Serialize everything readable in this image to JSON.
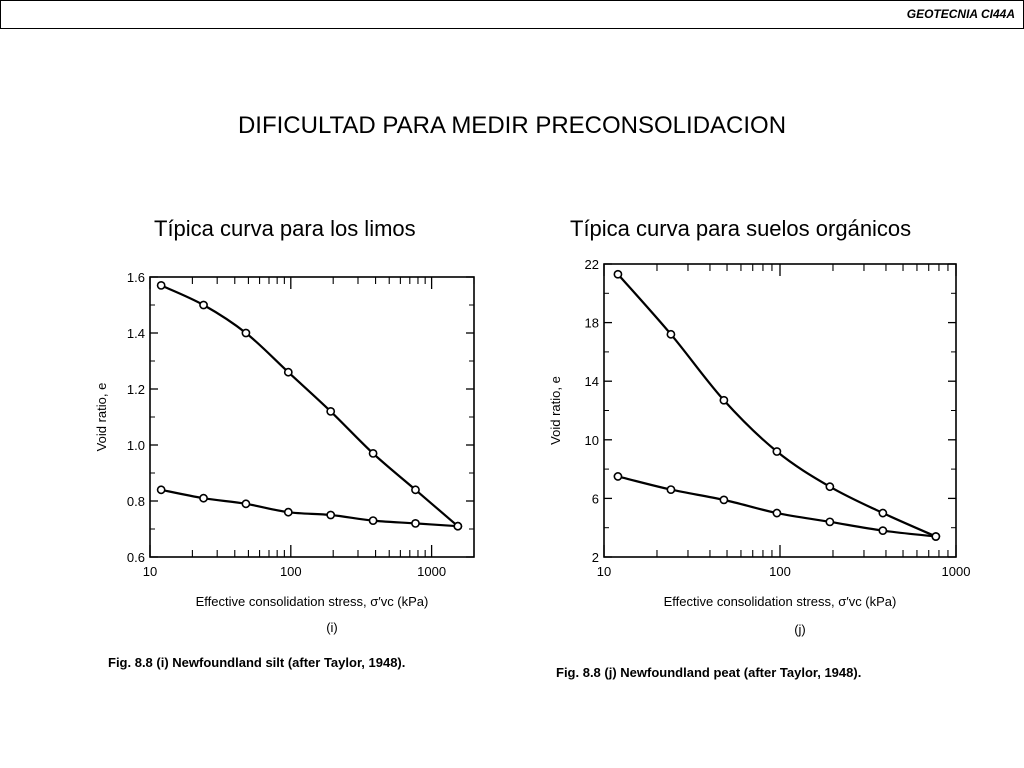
{
  "header": {
    "course_code": "GEOTECNIA CI44A"
  },
  "slide": {
    "title": "DIFICULTAD PARA MEDIR PRECONSOLIDACION",
    "subtitle_left": "Típica curva para los limos",
    "subtitle_right": "Típica curva para suelos orgánicos"
  },
  "chart_data": [
    {
      "type": "line",
      "panel_label": "(i)",
      "caption": "Fig. 8.8 (i)   Newfoundland silt (after Taylor, 1948).",
      "xlabel": "Effective consolidation stress, σ′vc (kPa)",
      "ylabel": "Void ratio, e",
      "xscale": "log",
      "xlim": [
        10,
        2000
      ],
      "ylim": [
        0.6,
        1.6
      ],
      "xticks": [
        10,
        100,
        1000
      ],
      "yticks": [
        0.6,
        0.8,
        1.0,
        1.2,
        1.4,
        1.6
      ],
      "yticklabels": [
        "0.6",
        "0.8",
        "1.0",
        "1.2",
        "1.4",
        "1.6"
      ],
      "grid": false,
      "series": [
        {
          "role": "loading",
          "x": [
            12,
            24,
            48,
            96,
            192,
            384,
            768,
            1536
          ],
          "y": [
            1.57,
            1.5,
            1.4,
            1.26,
            1.12,
            0.97,
            0.84,
            0.71
          ]
        },
        {
          "role": "unloading",
          "x": [
            12,
            24,
            48,
            96,
            192,
            384,
            768,
            1536
          ],
          "y": [
            0.84,
            0.81,
            0.79,
            0.76,
            0.75,
            0.73,
            0.72,
            0.71
          ]
        }
      ]
    },
    {
      "type": "line",
      "panel_label": "(j)",
      "caption": "Fig. 8.8 (j)   Newfoundland peat (after Taylor, 1948).",
      "xlabel": "Effective consolidation stress, σ′vc (kPa)",
      "ylabel": "Void ratio, e",
      "xscale": "log",
      "xlim": [
        10,
        1000
      ],
      "ylim": [
        2,
        22
      ],
      "xticks": [
        10,
        100,
        1000
      ],
      "yticks": [
        2,
        6,
        10,
        14,
        18,
        22
      ],
      "yticklabels": [
        "2",
        "6",
        "10",
        "14",
        "18",
        "22"
      ],
      "grid": false,
      "series": [
        {
          "role": "loading",
          "x": [
            12,
            24,
            48,
            96,
            192,
            384,
            768
          ],
          "y": [
            21.3,
            17.2,
            12.7,
            9.2,
            6.8,
            5.0,
            3.4
          ]
        },
        {
          "role": "unloading",
          "x": [
            12,
            24,
            48,
            96,
            192,
            384,
            768
          ],
          "y": [
            7.5,
            6.6,
            5.9,
            5.0,
            4.4,
            3.8,
            3.4
          ]
        }
      ]
    }
  ]
}
